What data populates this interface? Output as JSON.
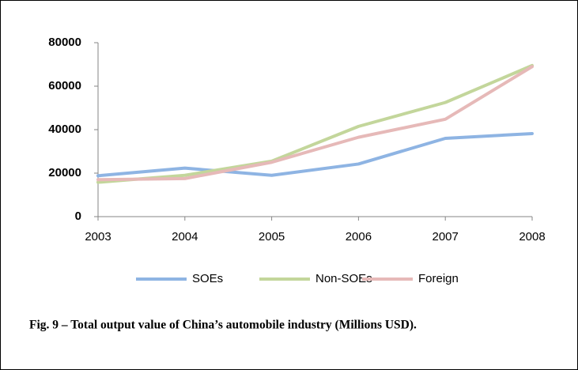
{
  "chart_data": {
    "type": "line",
    "caption": "Fig. 9 – Total output value of China’s automobile industry (Millions USD).",
    "categories": [
      "2003",
      "2004",
      "2005",
      "2006",
      "2007",
      "2008"
    ],
    "series": [
      {
        "name": "SOEs",
        "color": "#8eb4e3",
        "values": [
          18800,
          22300,
          19000,
          24200,
          36000,
          38200
        ]
      },
      {
        "name": "Non-SOEs",
        "color": "#c3d69b",
        "values": [
          15800,
          19000,
          25500,
          41500,
          52500,
          69500
        ]
      },
      {
        "name": "Foreign",
        "color": "#e6b9b8",
        "values": [
          17000,
          17500,
          25000,
          36500,
          44800,
          69000
        ]
      }
    ],
    "ylim": [
      0,
      80000
    ],
    "yticks": [
      0,
      20000,
      40000,
      60000,
      80000
    ],
    "grid": false,
    "legend": "bottom"
  }
}
